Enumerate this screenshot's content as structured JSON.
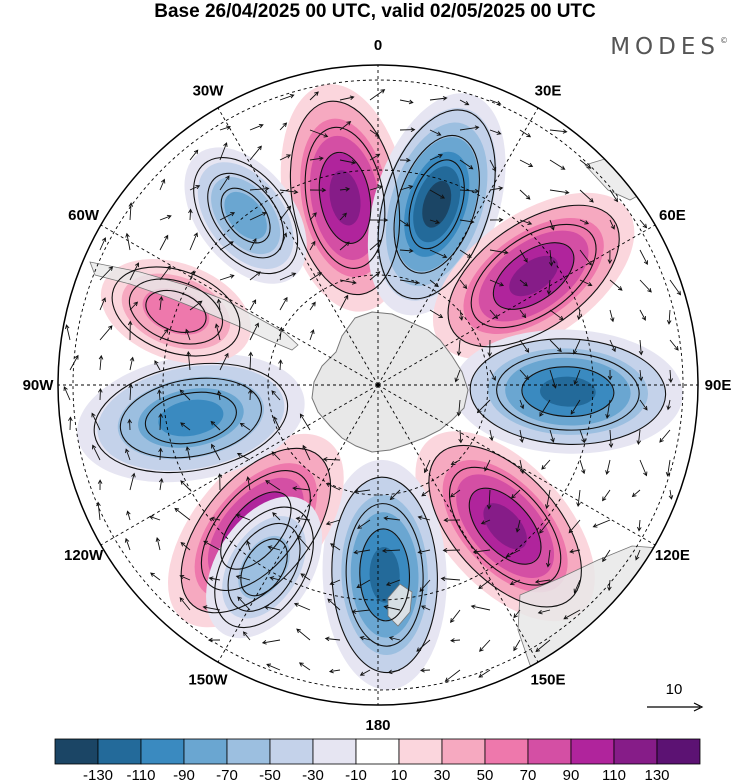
{
  "title": "Base 26/04/2025 00 UTC, valid 02/05/2025 00 UTC",
  "brand": "MODES",
  "brand_mark": "©",
  "longitude_labels": [
    {
      "text": "0",
      "lon": 0
    },
    {
      "text": "30E",
      "lon": 30
    },
    {
      "text": "60E",
      "lon": 60
    },
    {
      "text": "90E",
      "lon": 90
    },
    {
      "text": "120E",
      "lon": 120
    },
    {
      "text": "150E",
      "lon": 150
    },
    {
      "text": "180",
      "lon": 180
    },
    {
      "text": "150W",
      "lon": -150
    },
    {
      "text": "120W",
      "lon": -120
    },
    {
      "text": "90W",
      "lon": -90
    },
    {
      "text": "60W",
      "lon": -60
    },
    {
      "text": "30W",
      "lon": -30
    }
  ],
  "reference_vector": {
    "label": "10",
    "value": 10
  },
  "colorbar": {
    "ticks": [
      "-130",
      "-110",
      "-90",
      "-70",
      "-50",
      "-30",
      "-10",
      "10",
      "30",
      "50",
      "70",
      "90",
      "110",
      "130"
    ],
    "colors": [
      "#1b4565",
      "#236a9a",
      "#3a8ac0",
      "#6aa6d1",
      "#9cbfe0",
      "#c4d2ea",
      "#e6e5f2",
      "#ffffff",
      "#fbd6dd",
      "#f6a9c0",
      "#ee78ac",
      "#d44fa4",
      "#b0249c",
      "#861c88",
      "#5c1273"
    ]
  },
  "anomaly_centers": [
    {
      "lon": -10,
      "sign": "positive",
      "magnitude": 110
    },
    {
      "lon": 18,
      "sign": "negative",
      "magnitude": 130
    },
    {
      "lon": 55,
      "sign": "positive",
      "magnitude": 110
    },
    {
      "lon": 92,
      "sign": "negative",
      "magnitude": 110
    },
    {
      "lon": 138,
      "sign": "positive",
      "magnitude": 110
    },
    {
      "lon": 178,
      "sign": "negative",
      "magnitude": 110
    },
    {
      "lon": -140,
      "sign": "positive",
      "magnitude": 110
    },
    {
      "lon": -100,
      "sign": "negative",
      "magnitude": 90
    },
    {
      "lon": -38,
      "sign": "negative",
      "magnitude": 70
    },
    {
      "lon": -70,
      "sign": "positive",
      "magnitude": 50
    },
    {
      "lon": -148,
      "sign": "negative",
      "magnitude": 50
    }
  ],
  "colors": {
    "land": "#e8e8e8",
    "coast": "#777777",
    "grid": "#000000",
    "wind": "#111111"
  }
}
